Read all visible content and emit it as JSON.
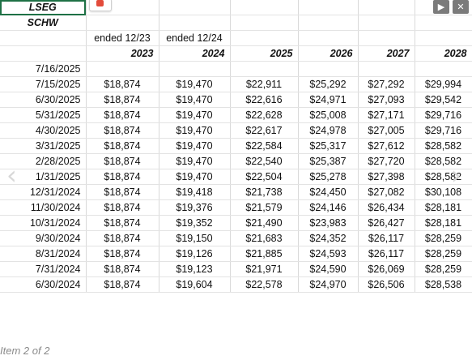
{
  "tickers": [
    "LSEG",
    "SCHW"
  ],
  "ended": [
    "ended 12/23",
    "ended 12/24"
  ],
  "years": [
    "2023",
    "2024",
    "2025",
    "2026",
    "2027",
    "2028"
  ],
  "rows": [
    [
      "7/16/2025",
      "",
      "",
      "",
      "",
      "",
      ""
    ],
    [
      "7/15/2025",
      "$18,874",
      "$19,470",
      "$22,911",
      "$25,292",
      "$27,292",
      "$29,994"
    ],
    [
      "6/30/2025",
      "$18,874",
      "$19,470",
      "$22,616",
      "$24,971",
      "$27,093",
      "$29,542"
    ],
    [
      "5/31/2025",
      "$18,874",
      "$19,470",
      "$22,628",
      "$25,008",
      "$27,171",
      "$29,716"
    ],
    [
      "4/30/2025",
      "$18,874",
      "$19,470",
      "$22,617",
      "$24,978",
      "$27,005",
      "$29,716"
    ],
    [
      "3/31/2025",
      "$18,874",
      "$19,470",
      "$22,584",
      "$25,317",
      "$27,612",
      "$28,582"
    ],
    [
      "2/28/2025",
      "$18,874",
      "$19,470",
      "$22,540",
      "$25,387",
      "$27,720",
      "$28,582"
    ],
    [
      "1/31/2025",
      "$18,874",
      "$19,470",
      "$22,504",
      "$25,278",
      "$27,398",
      "$28,582"
    ],
    [
      "12/31/2024",
      "$18,874",
      "$19,418",
      "$21,738",
      "$24,450",
      "$27,082",
      "$30,108"
    ],
    [
      "11/30/2024",
      "$18,874",
      "$19,376",
      "$21,579",
      "$24,146",
      "$26,434",
      "$28,181"
    ],
    [
      "10/31/2024",
      "$18,874",
      "$19,352",
      "$21,490",
      "$23,983",
      "$26,427",
      "$28,181"
    ],
    [
      "9/30/2024",
      "$18,874",
      "$19,150",
      "$21,683",
      "$24,352",
      "$26,117",
      "$28,259"
    ],
    [
      "8/31/2024",
      "$18,874",
      "$19,126",
      "$21,885",
      "$24,593",
      "$26,117",
      "$28,259"
    ],
    [
      "7/31/2024",
      "$18,874",
      "$19,123",
      "$21,971",
      "$24,590",
      "$26,069",
      "$28,259"
    ],
    [
      "6/30/2024",
      "$18,874",
      "$19,604",
      "$22,578",
      "$24,970",
      "$26,506",
      "$28,538"
    ]
  ],
  "caption": "Item 2 of 2",
  "icons": {
    "prev": "play-icon",
    "close": "close-icon",
    "left": "chevron-left-icon",
    "right": "chevron-right-icon"
  }
}
